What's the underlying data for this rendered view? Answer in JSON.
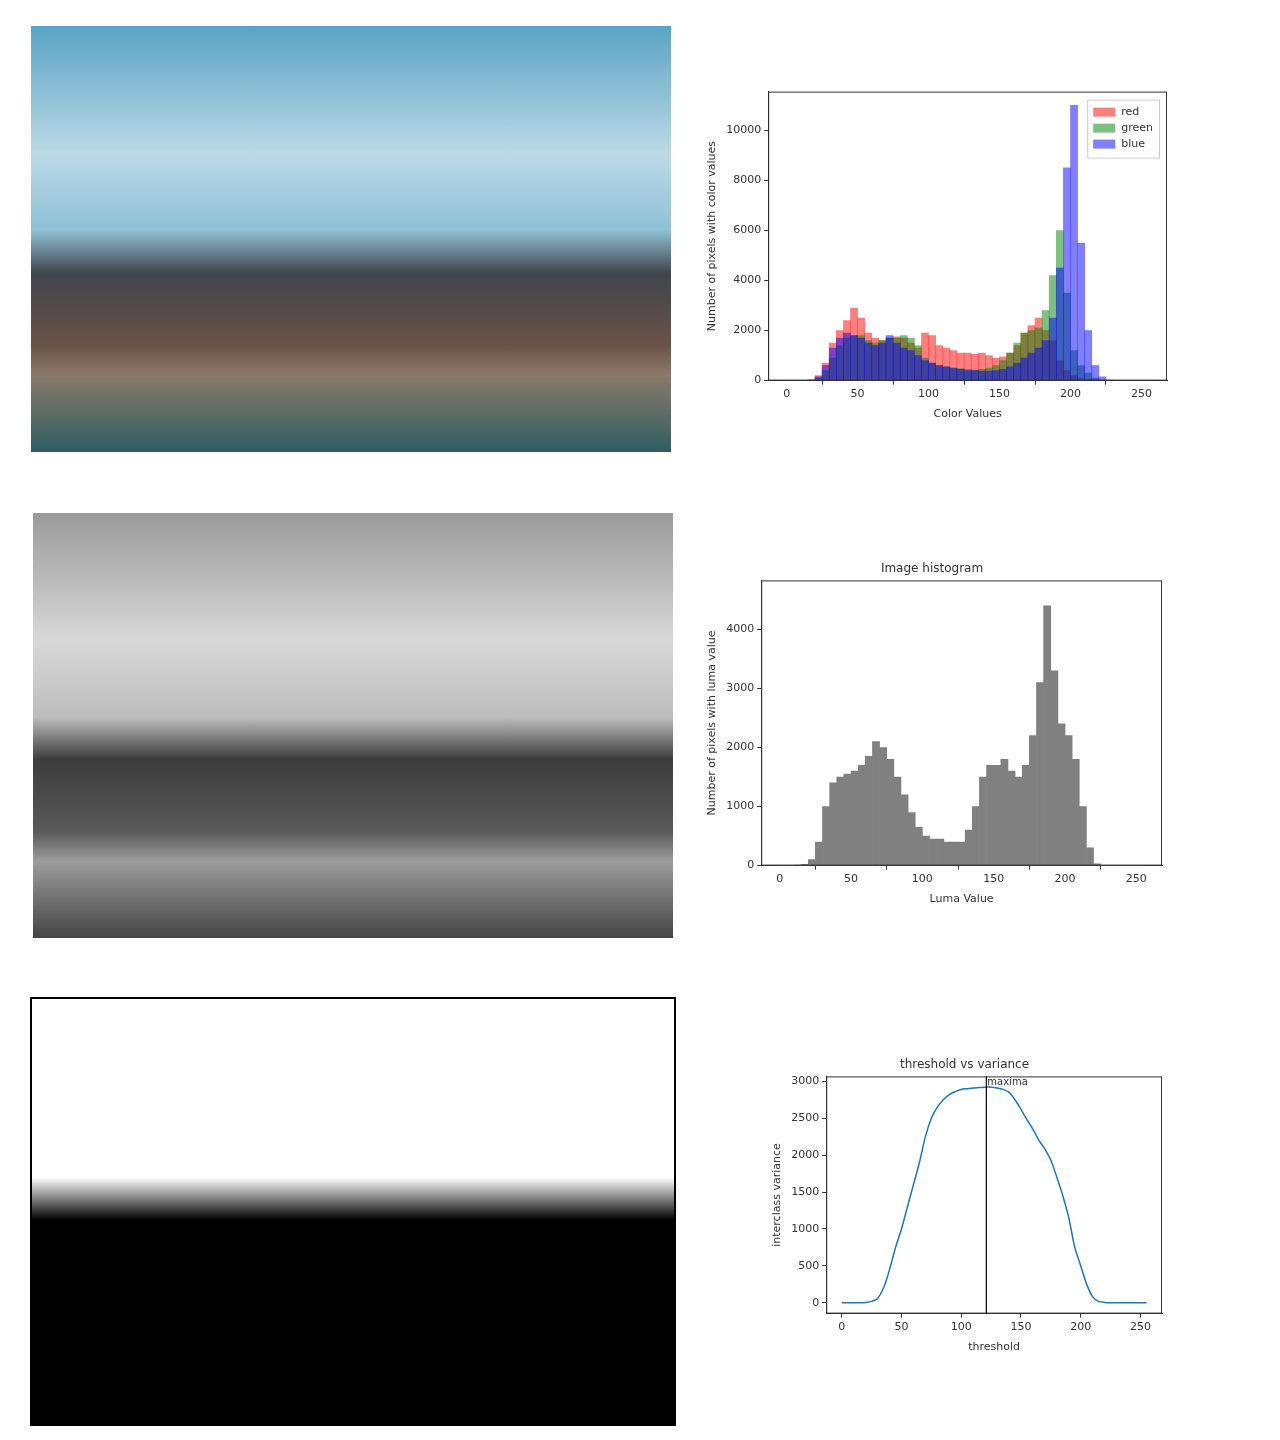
{
  "chart_data": [
    {
      "type": "histogram",
      "xlabel": "Color Values",
      "ylabel": "Number of pixels with color values",
      "bins": [
        0,
        5,
        10,
        15,
        20,
        25,
        30,
        35,
        40,
        45,
        50,
        55,
        60,
        65,
        70,
        75,
        80,
        85,
        90,
        95,
        100,
        105,
        110,
        115,
        120,
        125,
        130,
        135,
        140,
        145,
        150,
        155,
        160,
        165,
        170,
        175,
        180,
        185,
        190,
        195,
        200,
        205,
        210,
        215,
        220,
        225,
        230,
        235,
        240,
        245,
        250,
        255
      ],
      "series": [
        {
          "name": "red",
          "color": "#ff0000",
          "values": [
            0,
            0,
            0,
            30,
            200,
            700,
            1500,
            2000,
            2400,
            2900,
            2500,
            1900,
            1700,
            1600,
            1700,
            1750,
            1700,
            1500,
            1300,
            1900,
            1800,
            1400,
            1300,
            1200,
            1100,
            1100,
            1050,
            1100,
            1000,
            900,
            950,
            1100,
            1400,
            1900,
            2200,
            2500,
            2000,
            1600,
            800,
            400,
            200,
            100,
            50,
            10,
            0,
            0,
            0,
            0,
            0,
            0,
            0
          ]
        },
        {
          "name": "green",
          "color": "#008000",
          "values": [
            0,
            0,
            0,
            10,
            100,
            400,
            900,
            1400,
            1700,
            1800,
            1800,
            1600,
            1500,
            1600,
            1700,
            1700,
            1800,
            1700,
            1400,
            900,
            700,
            600,
            550,
            500,
            480,
            450,
            430,
            450,
            500,
            600,
            800,
            1100,
            1500,
            1900,
            2000,
            2100,
            2800,
            4200,
            6000,
            3500,
            1200,
            600,
            300,
            100,
            20,
            0,
            0,
            0,
            0,
            0,
            0
          ]
        },
        {
          "name": "blue",
          "color": "#0000ff",
          "values": [
            0,
            0,
            0,
            20,
            150,
            600,
            1300,
            1700,
            1900,
            1800,
            1700,
            1500,
            1400,
            1500,
            1800,
            1500,
            1300,
            1200,
            1000,
            800,
            700,
            600,
            550,
            500,
            450,
            400,
            400,
            380,
            380,
            400,
            450,
            550,
            700,
            900,
            1100,
            1300,
            1600,
            2500,
            4500,
            8500,
            11000,
            5500,
            2000,
            600,
            150,
            20,
            0,
            0,
            0,
            0,
            0
          ]
        }
      ],
      "xlim": [
        -13,
        268
      ],
      "xticks": [
        0,
        50,
        100,
        150,
        200,
        250
      ],
      "ylim": [
        0,
        11550
      ],
      "yticks": [
        0,
        2000,
        4000,
        6000,
        8000,
        10000
      ],
      "legend": "upper right",
      "grid": false
    },
    {
      "type": "histogram",
      "title": "Image histogram",
      "xlabel": "Luma Value",
      "ylabel": "Number of pixels with luma value",
      "bins": [
        0,
        5,
        10,
        15,
        20,
        25,
        30,
        35,
        40,
        45,
        50,
        55,
        60,
        65,
        70,
        75,
        80,
        85,
        90,
        95,
        100,
        105,
        110,
        115,
        120,
        125,
        130,
        135,
        140,
        145,
        150,
        155,
        160,
        165,
        170,
        175,
        180,
        185,
        190,
        195,
        200,
        205,
        210,
        215,
        220,
        225,
        230,
        235,
        240,
        245,
        250,
        255
      ],
      "values": [
        0,
        0,
        5,
        20,
        100,
        400,
        1000,
        1400,
        1500,
        1550,
        1600,
        1700,
        1850,
        2100,
        2000,
        1800,
        1500,
        1200,
        900,
        650,
        500,
        450,
        450,
        400,
        400,
        400,
        600,
        1000,
        1500,
        1700,
        1700,
        1800,
        1600,
        1500,
        1700,
        2200,
        3100,
        4400,
        3300,
        2400,
        2200,
        1800,
        1000,
        300,
        30,
        0,
        0,
        0,
        0,
        0,
        0
      ],
      "color": "#808080",
      "xlim": [
        -13,
        268
      ],
      "xticks": [
        0,
        50,
        100,
        150,
        200,
        250
      ],
      "ylim": [
        0,
        4830
      ],
      "yticks": [
        0,
        1000,
        2000,
        3000,
        4000
      ],
      "grid": false
    },
    {
      "type": "line",
      "title": "threshold vs variance",
      "xlabel": "threshold",
      "ylabel": "interclass variance",
      "x": [
        0,
        5,
        10,
        15,
        20,
        25,
        30,
        35,
        40,
        45,
        50,
        55,
        60,
        65,
        70,
        75,
        80,
        85,
        90,
        95,
        100,
        105,
        110,
        115,
        120,
        125,
        130,
        135,
        140,
        145,
        150,
        155,
        160,
        165,
        170,
        175,
        180,
        185,
        190,
        195,
        200,
        205,
        210,
        215,
        220,
        225,
        230,
        235,
        240,
        245,
        250,
        255
      ],
      "values": [
        0,
        0,
        0,
        0,
        5,
        20,
        60,
        200,
        450,
        750,
        1000,
        1300,
        1600,
        1900,
        2250,
        2500,
        2650,
        2750,
        2820,
        2860,
        2890,
        2900,
        2910,
        2915,
        2920,
        2920,
        2910,
        2890,
        2850,
        2750,
        2620,
        2480,
        2350,
        2200,
        2080,
        1930,
        1700,
        1450,
        1150,
        750,
        500,
        250,
        80,
        20,
        5,
        0,
        0,
        0,
        0,
        0,
        0,
        0
      ],
      "color": "#1f77b4",
      "annotations": [
        {
          "text": "maxima",
          "x": 121
        }
      ],
      "xlim": [
        -13,
        268
      ],
      "xticks": [
        0,
        50,
        100,
        150,
        200,
        250
      ],
      "ylim": [
        -146,
        3066
      ],
      "yticks": [
        0,
        500,
        1000,
        1500,
        2000,
        2500,
        3000
      ],
      "grid": false
    }
  ]
}
